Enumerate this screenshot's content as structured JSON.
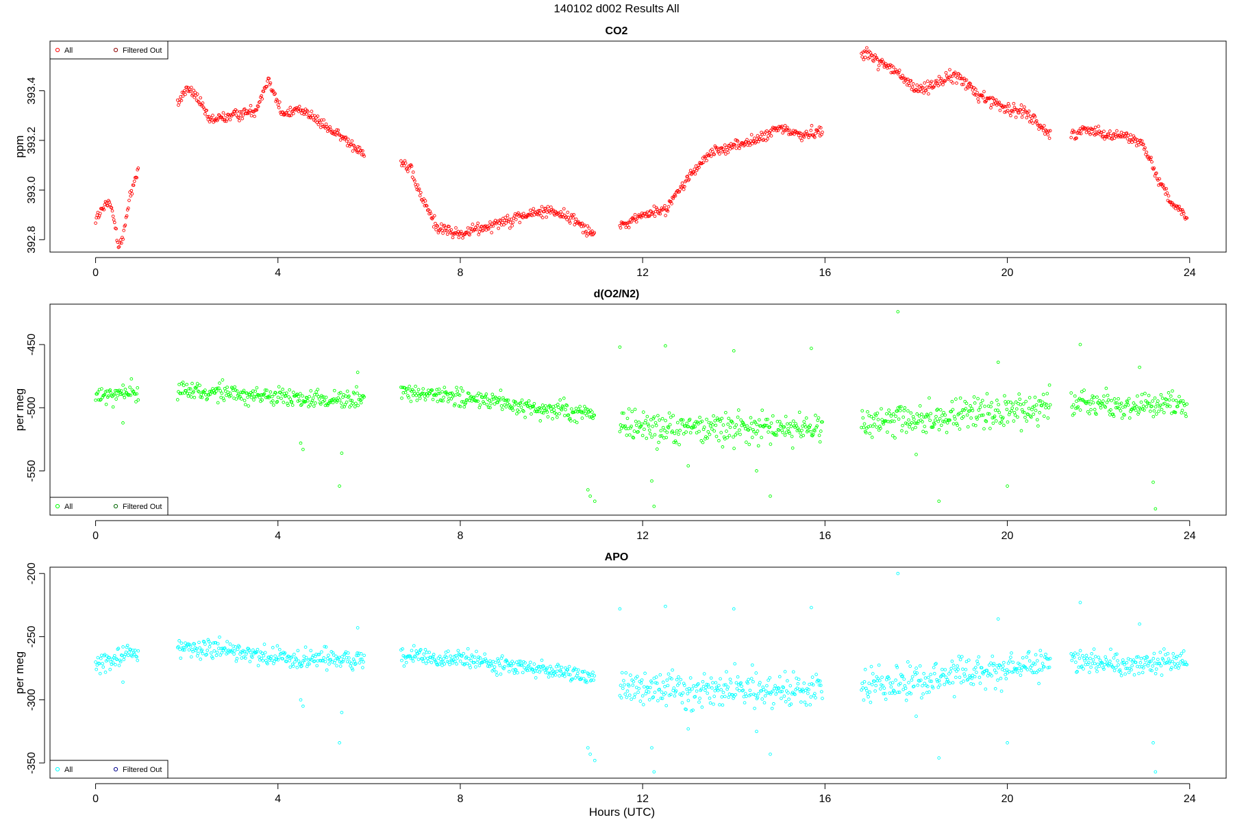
{
  "figure": {
    "title": "140102   d002   Results All",
    "xlabel": "Hours (UTC)"
  },
  "chart_data": [
    {
      "type": "scatter",
      "title": "CO2",
      "xlabel": "",
      "ylabel": "ppm",
      "xlim": [
        -1.0,
        24.8
      ],
      "ylim": [
        392.75,
        393.6
      ],
      "xticks": [
        0,
        4,
        8,
        12,
        16,
        20,
        24
      ],
      "yticks": [
        392.8,
        393.0,
        393.2,
        393.4
      ],
      "ytick_labels": [
        "392.8",
        "393.0",
        "393.2",
        "393.4"
      ],
      "legend": {
        "position": "top-left",
        "entries": [
          "All",
          "Filtered Out"
        ]
      },
      "series": [
        {
          "name": "All",
          "color": "#ff0000",
          "segments": [
            {
              "x_start": 0.0,
              "x_end": 0.95,
              "knots": [
                [
                  0.0,
                  392.88
                ],
                [
                  0.15,
                  392.92
                ],
                [
                  0.3,
                  392.95
                ],
                [
                  0.45,
                  392.85
                ],
                [
                  0.5,
                  392.78
                ],
                [
                  0.6,
                  392.8
                ],
                [
                  0.75,
                  392.98
                ],
                [
                  0.95,
                  393.08
                ]
              ],
              "noise": 0.03
            },
            {
              "x_start": 1.8,
              "x_end": 5.9,
              "knots": [
                [
                  1.8,
                  393.35
                ],
                [
                  2.0,
                  393.41
                ],
                [
                  2.2,
                  393.38
                ],
                [
                  2.5,
                  393.28
                ],
                [
                  3.0,
                  393.3
                ],
                [
                  3.5,
                  393.32
                ],
                [
                  3.8,
                  393.45
                ],
                [
                  4.1,
                  393.3
                ],
                [
                  4.5,
                  393.33
                ],
                [
                  5.0,
                  393.26
                ],
                [
                  5.5,
                  393.2
                ],
                [
                  5.9,
                  393.15
                ]
              ],
              "noise": 0.025
            },
            {
              "x_start": 6.7,
              "x_end": 10.95,
              "knots": [
                [
                  6.7,
                  393.12
                ],
                [
                  6.9,
                  393.08
                ],
                [
                  7.2,
                  392.95
                ],
                [
                  7.5,
                  392.85
                ],
                [
                  8.0,
                  392.82
                ],
                [
                  8.5,
                  392.85
                ],
                [
                  9.0,
                  392.88
                ],
                [
                  9.5,
                  392.9
                ],
                [
                  10.0,
                  392.92
                ],
                [
                  10.5,
                  392.88
                ],
                [
                  10.95,
                  392.82
                ]
              ],
              "noise": 0.03
            },
            {
              "x_start": 11.5,
              "x_end": 15.95,
              "knots": [
                [
                  11.5,
                  392.85
                ],
                [
                  12.0,
                  392.9
                ],
                [
                  12.5,
                  392.92
                ],
                [
                  13.0,
                  393.05
                ],
                [
                  13.5,
                  393.15
                ],
                [
                  14.0,
                  393.18
                ],
                [
                  14.5,
                  393.2
                ],
                [
                  15.0,
                  393.25
                ],
                [
                  15.5,
                  393.22
                ],
                [
                  15.95,
                  393.24
                ]
              ],
              "noise": 0.025
            },
            {
              "x_start": 16.8,
              "x_end": 20.95,
              "knots": [
                [
                  16.8,
                  393.56
                ],
                [
                  17.2,
                  393.52
                ],
                [
                  17.6,
                  393.47
                ],
                [
                  18.0,
                  393.4
                ],
                [
                  18.4,
                  393.43
                ],
                [
                  18.9,
                  393.46
                ],
                [
                  19.4,
                  393.38
                ],
                [
                  20.0,
                  393.33
                ],
                [
                  20.5,
                  393.3
                ],
                [
                  20.95,
                  393.22
                ]
              ],
              "noise": 0.03
            },
            {
              "x_start": 21.4,
              "x_end": 23.95,
              "knots": [
                [
                  21.4,
                  393.22
                ],
                [
                  21.8,
                  393.25
                ],
                [
                  22.2,
                  393.22
                ],
                [
                  22.6,
                  393.22
                ],
                [
                  23.0,
                  393.18
                ],
                [
                  23.3,
                  393.05
                ],
                [
                  23.6,
                  392.95
                ],
                [
                  23.95,
                  392.88
                ]
              ],
              "noise": 0.025
            }
          ]
        },
        {
          "name": "Filtered Out",
          "color": "#8b0000",
          "points": []
        }
      ]
    },
    {
      "type": "scatter",
      "title": "d(O2/N2)",
      "xlabel": "",
      "ylabel": "per meg",
      "xlim": [
        -1.0,
        24.8
      ],
      "ylim": [
        -585,
        -418
      ],
      "xticks": [
        0,
        4,
        8,
        12,
        16,
        20,
        24
      ],
      "yticks": [
        -450,
        -500,
        -550
      ],
      "ytick_labels": [
        "-450",
        "-500",
        "-550"
      ],
      "legend": {
        "position": "bottom-left",
        "entries": [
          "All",
          "Filtered Out"
        ]
      },
      "series": [
        {
          "name": "All",
          "color": "#00ff00",
          "segments": [
            {
              "x_start": 0.0,
              "x_end": 0.95,
              "knots": [
                [
                  0.0,
                  -492
                ],
                [
                  0.95,
                  -486
                ]
              ],
              "noise": 9
            },
            {
              "x_start": 1.8,
              "x_end": 5.9,
              "knots": [
                [
                  1.8,
                  -485
                ],
                [
                  3.0,
                  -489
                ],
                [
                  4.5,
                  -494
                ],
                [
                  5.9,
                  -493
                ]
              ],
              "noise": 9
            },
            {
              "x_start": 6.7,
              "x_end": 10.95,
              "knots": [
                [
                  6.7,
                  -488
                ],
                [
                  8.0,
                  -492
                ],
                [
                  9.5,
                  -500
                ],
                [
                  10.95,
                  -505
                ]
              ],
              "noise": 8
            },
            {
              "x_start": 11.5,
              "x_end": 15.95,
              "knots": [
                [
                  11.5,
                  -513
                ],
                [
                  13.5,
                  -517
                ],
                [
                  15.95,
                  -515
                ]
              ],
              "noise": 16
            },
            {
              "x_start": 16.8,
              "x_end": 20.95,
              "knots": [
                [
                  16.8,
                  -512
                ],
                [
                  18.5,
                  -508
                ],
                [
                  20.95,
                  -500
                ]
              ],
              "noise": 16
            },
            {
              "x_start": 21.4,
              "x_end": 23.95,
              "knots": [
                [
                  21.4,
                  -495
                ],
                [
                  22.5,
                  -498
                ],
                [
                  23.95,
                  -497
                ]
              ],
              "noise": 11
            }
          ],
          "outliers": [
            [
              0.6,
              -512
            ],
            [
              4.5,
              -528
            ],
            [
              4.55,
              -533
            ],
            [
              5.4,
              -536
            ],
            [
              5.35,
              -562
            ],
            [
              5.75,
              -472
            ],
            [
              10.8,
              -565
            ],
            [
              10.85,
              -570
            ],
            [
              10.95,
              -574
            ],
            [
              11.5,
              -452
            ],
            [
              12.2,
              -558
            ],
            [
              12.25,
              -578
            ],
            [
              12.5,
              -451
            ],
            [
              13.0,
              -546
            ],
            [
              14.0,
              -455
            ],
            [
              14.5,
              -550
            ],
            [
              14.8,
              -570
            ],
            [
              15.7,
              -453
            ],
            [
              17.6,
              -424
            ],
            [
              18.0,
              -537
            ],
            [
              18.5,
              -574
            ],
            [
              19.8,
              -464
            ],
            [
              20.0,
              -562
            ],
            [
              21.6,
              -450
            ],
            [
              22.9,
              -468
            ],
            [
              23.2,
              -559
            ],
            [
              23.25,
              -580
            ]
          ]
        },
        {
          "name": "Filtered Out",
          "color": "#006400",
          "points": []
        }
      ]
    },
    {
      "type": "scatter",
      "title": "APO",
      "xlabel": "Hours (UTC)",
      "ylabel": "per meg",
      "xlim": [
        -1.0,
        24.8
      ],
      "ylim": [
        -362,
        -195
      ],
      "xticks": [
        0,
        4,
        8,
        12,
        16,
        20,
        24
      ],
      "yticks": [
        -200,
        -250,
        -300,
        -350
      ],
      "ytick_labels": [
        "-200",
        "-250",
        "-300",
        "-350"
      ],
      "legend": {
        "position": "bottom-left",
        "entries": [
          "All",
          "Filtered Out"
        ]
      },
      "series": [
        {
          "name": "All",
          "color": "#00ffff",
          "segments": [
            {
              "x_start": 0.0,
              "x_end": 0.95,
              "knots": [
                [
                  0.0,
                  -270
                ],
                [
                  0.95,
                  -262
                ]
              ],
              "noise": 9
            },
            {
              "x_start": 1.8,
              "x_end": 5.9,
              "knots": [
                [
                  1.8,
                  -258
                ],
                [
                  3.0,
                  -262
                ],
                [
                  4.5,
                  -268
                ],
                [
                  5.9,
                  -268
                ]
              ],
              "noise": 9
            },
            {
              "x_start": 6.7,
              "x_end": 10.95,
              "knots": [
                [
                  6.7,
                  -265
                ],
                [
                  8.0,
                  -268
                ],
                [
                  9.5,
                  -275
                ],
                [
                  10.95,
                  -282
                ]
              ],
              "noise": 8
            },
            {
              "x_start": 11.5,
              "x_end": 15.95,
              "knots": [
                [
                  11.5,
                  -290
                ],
                [
                  13.5,
                  -292
                ],
                [
                  15.95,
                  -292
                ]
              ],
              "noise": 16
            },
            {
              "x_start": 16.8,
              "x_end": 20.95,
              "knots": [
                [
                  16.8,
                  -290
                ],
                [
                  18.5,
                  -283
                ],
                [
                  20.95,
                  -272
                ]
              ],
              "noise": 16
            },
            {
              "x_start": 21.4,
              "x_end": 23.95,
              "knots": [
                [
                  21.4,
                  -268
                ],
                [
                  22.5,
                  -272
                ],
                [
                  23.95,
                  -270
                ]
              ],
              "noise": 11
            }
          ],
          "outliers": [
            [
              0.6,
              -286
            ],
            [
              4.5,
              -300
            ],
            [
              4.55,
              -305
            ],
            [
              5.4,
              -310
            ],
            [
              5.35,
              -334
            ],
            [
              5.75,
              -243
            ],
            [
              10.8,
              -338
            ],
            [
              10.85,
              -343
            ],
            [
              10.95,
              -348
            ],
            [
              11.5,
              -228
            ],
            [
              12.2,
              -338
            ],
            [
              12.25,
              -357
            ],
            [
              12.5,
              -226
            ],
            [
              13.0,
              -323
            ],
            [
              14.0,
              -228
            ],
            [
              14.5,
              -325
            ],
            [
              14.8,
              -343
            ],
            [
              15.7,
              -227
            ],
            [
              17.6,
              -200
            ],
            [
              18.0,
              -313
            ],
            [
              18.5,
              -346
            ],
            [
              19.8,
              -236
            ],
            [
              20.0,
              -334
            ],
            [
              21.6,
              -223
            ],
            [
              22.9,
              -240
            ],
            [
              23.2,
              -334
            ],
            [
              23.25,
              -357
            ]
          ]
        },
        {
          "name": "Filtered Out",
          "color": "#00008b",
          "points": []
        }
      ]
    }
  ]
}
